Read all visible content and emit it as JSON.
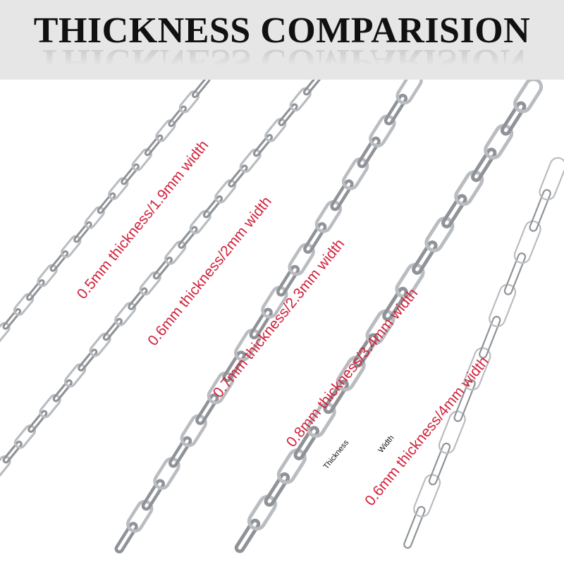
{
  "header": {
    "title": "THICKNESS COMPARISION"
  },
  "colors": {
    "label": "#d1213b",
    "header_bg": "#e6e6e6",
    "chain": "#b9bcc0"
  },
  "chains": [
    {
      "label": "0.5mm thickness/1.9mm width"
    },
    {
      "label": "0.6mm thickness/2mm width"
    },
    {
      "label": "0.7mm thickness/2.3mm width"
    },
    {
      "label": "0.8mm thickness/3.4mm width"
    },
    {
      "label": "0.6mm thickness/4mm width"
    }
  ],
  "diagram": {
    "thickness_label": "Thickness",
    "width_label": "Width"
  }
}
